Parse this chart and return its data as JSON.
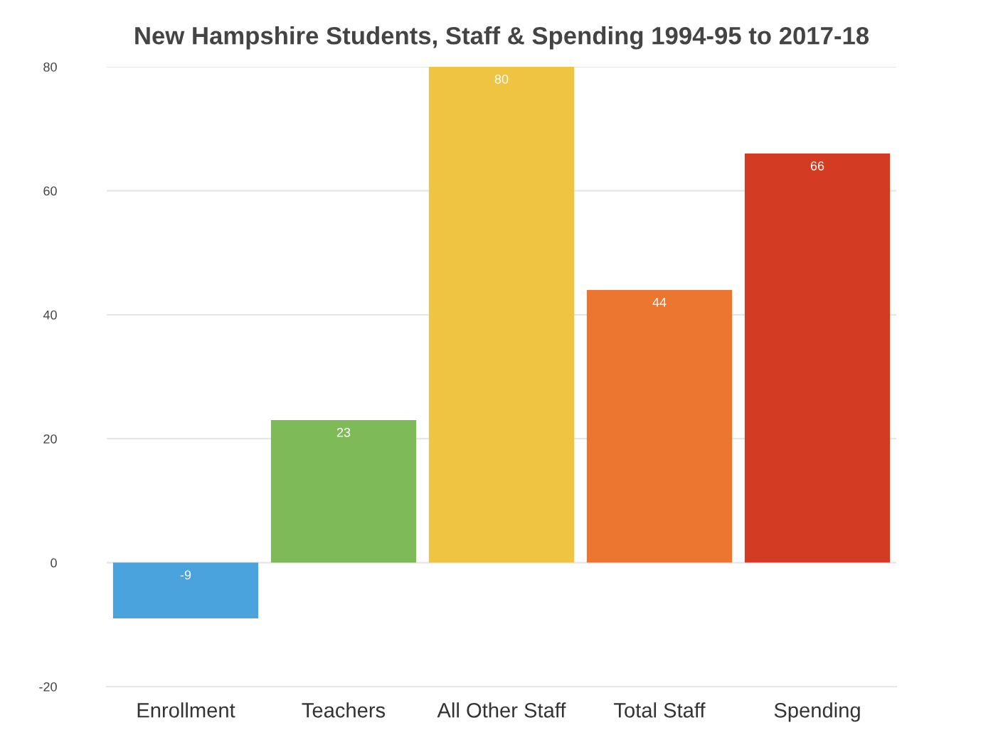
{
  "chart_data": {
    "type": "bar",
    "title": "New Hampshire Students, Staff & Spending 1994-95 to 2017-18",
    "categories": [
      "Enrollment",
      "Teachers",
      "All Other Staff",
      "Total Staff",
      "Spending"
    ],
    "values": [
      -9,
      23,
      80,
      44,
      66
    ],
    "colors": [
      "#4aa3dc",
      "#7fba58",
      "#efc443",
      "#ec7530",
      "#d33b22"
    ],
    "ylim": [
      -20,
      80
    ],
    "yticks": [
      -20,
      0,
      20,
      40,
      60,
      80
    ],
    "grid": "y",
    "data_labels": true
  }
}
